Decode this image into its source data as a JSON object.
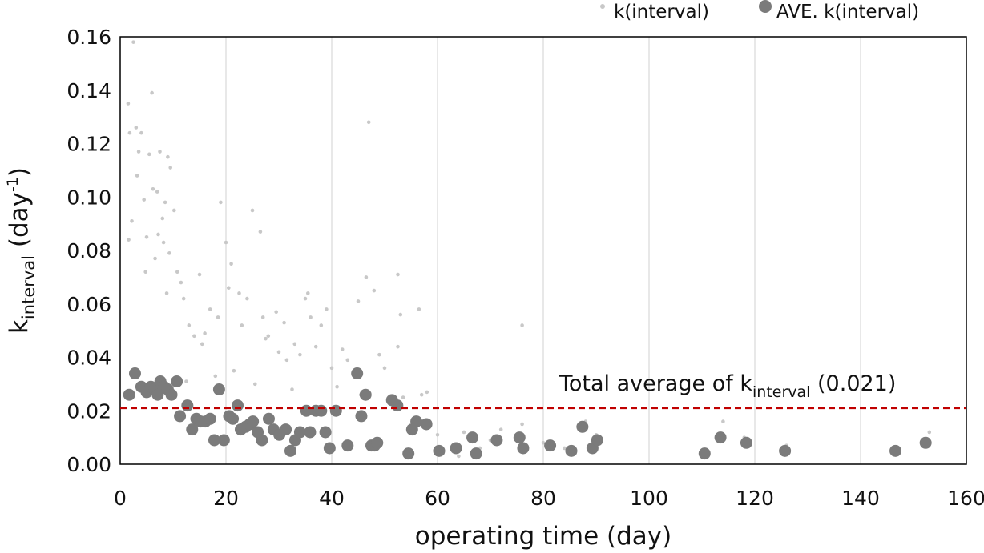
{
  "chart_data": {
    "type": "scatter",
    "title": "",
    "xlabel": "operating time (day)",
    "ylabel": {
      "base": "k",
      "subscript": "interval",
      "unit_open": " (day",
      "superscript": "-1",
      "unit_close": ")"
    },
    "xlim": [
      0,
      160
    ],
    "ylim": [
      0,
      0.16
    ],
    "xticks": [
      0,
      20,
      40,
      60,
      80,
      100,
      120,
      140,
      160
    ],
    "yticks": [
      0.0,
      0.02,
      0.04,
      0.06,
      0.08,
      0.1,
      0.12,
      0.14,
      0.16
    ],
    "ytick_labels": [
      "0.00",
      "0.02",
      "0.04",
      "0.06",
      "0.08",
      "0.10",
      "0.12",
      "0.14",
      "0.16"
    ],
    "xtick_labels": [
      "0",
      "20",
      "40",
      "60",
      "80",
      "100",
      "120",
      "140",
      "160"
    ],
    "grid": "vertical",
    "legend_position": "top-right",
    "series": [
      {
        "name": "k(interval)",
        "marker": "small-dot",
        "color": "#c8c8c8",
        "points": [
          [
            1.5,
            0.135
          ],
          [
            2.5,
            0.158
          ],
          [
            1.8,
            0.124
          ],
          [
            3.0,
            0.126
          ],
          [
            3.2,
            0.108
          ],
          [
            4.0,
            0.124
          ],
          [
            5.5,
            0.116
          ],
          [
            6.0,
            0.139
          ],
          [
            6.2,
            0.103
          ],
          [
            7.0,
            0.102
          ],
          [
            7.5,
            0.117
          ],
          [
            8.0,
            0.092
          ],
          [
            8.5,
            0.098
          ],
          [
            9.0,
            0.115
          ],
          [
            9.5,
            0.111
          ],
          [
            3.5,
            0.117
          ],
          [
            4.5,
            0.099
          ],
          [
            5.0,
            0.085
          ],
          [
            7.2,
            0.086
          ],
          [
            8.2,
            0.083
          ],
          [
            10.2,
            0.095
          ],
          [
            10.8,
            0.072
          ],
          [
            11.5,
            0.068
          ],
          [
            12.0,
            0.062
          ],
          [
            1.6,
            0.084
          ],
          [
            2.2,
            0.091
          ],
          [
            4.8,
            0.072
          ],
          [
            6.6,
            0.077
          ],
          [
            8.8,
            0.064
          ],
          [
            9.3,
            0.079
          ],
          [
            13.0,
            0.052
          ],
          [
            14.0,
            0.048
          ],
          [
            15.0,
            0.071
          ],
          [
            15.5,
            0.045
          ],
          [
            17.0,
            0.058
          ],
          [
            18.5,
            0.055
          ],
          [
            19.0,
            0.098
          ],
          [
            20.0,
            0.083
          ],
          [
            21.0,
            0.075
          ],
          [
            22.5,
            0.064
          ],
          [
            24.0,
            0.062
          ],
          [
            25.0,
            0.095
          ],
          [
            26.5,
            0.087
          ],
          [
            27.0,
            0.055
          ],
          [
            28.0,
            0.048
          ],
          [
            30.0,
            0.042
          ],
          [
            31.0,
            0.053
          ],
          [
            33.0,
            0.045
          ],
          [
            35.0,
            0.062
          ],
          [
            35.5,
            0.064
          ],
          [
            36.0,
            0.055
          ],
          [
            38.0,
            0.052
          ],
          [
            39.0,
            0.058
          ],
          [
            40.0,
            0.036
          ],
          [
            42.0,
            0.043
          ],
          [
            43.0,
            0.039
          ],
          [
            45.0,
            0.061
          ],
          [
            46.5,
            0.07
          ],
          [
            47.0,
            0.128
          ],
          [
            48.0,
            0.065
          ],
          [
            49.0,
            0.041
          ],
          [
            52.5,
            0.071
          ],
          [
            53.0,
            0.056
          ],
          [
            56.5,
            0.058
          ],
          [
            52.5,
            0.044
          ],
          [
            76.0,
            0.052
          ],
          [
            56.0,
            0.014
          ],
          [
            60.0,
            0.011
          ],
          [
            65.0,
            0.012
          ],
          [
            70.0,
            0.009
          ],
          [
            72.0,
            0.013
          ],
          [
            76.0,
            0.015
          ],
          [
            80.0,
            0.008
          ],
          [
            88.0,
            0.016
          ],
          [
            90.0,
            0.011
          ],
          [
            114.0,
            0.016
          ],
          [
            118.0,
            0.01
          ],
          [
            126.0,
            0.007
          ],
          [
            147.0,
            0.006
          ],
          [
            153.0,
            0.012
          ],
          [
            61.0,
            0.004
          ],
          [
            64.0,
            0.003
          ],
          [
            68.0,
            0.006
          ],
          [
            84.0,
            0.006
          ],
          [
            86.0,
            0.004
          ],
          [
            111.0,
            0.005
          ],
          [
            20.5,
            0.066
          ],
          [
            23.0,
            0.052
          ],
          [
            27.5,
            0.047
          ],
          [
            31.5,
            0.039
          ],
          [
            34.0,
            0.041
          ],
          [
            37.0,
            0.044
          ],
          [
            44.5,
            0.033
          ],
          [
            50.0,
            0.036
          ],
          [
            57.0,
            0.026
          ],
          [
            58.0,
            0.027
          ],
          [
            16.0,
            0.049
          ],
          [
            29.5,
            0.057
          ],
          [
            41.0,
            0.029
          ],
          [
            12.5,
            0.031
          ],
          [
            18.0,
            0.033
          ],
          [
            21.5,
            0.035
          ],
          [
            25.5,
            0.03
          ],
          [
            32.5,
            0.028
          ],
          [
            45.5,
            0.026
          ],
          [
            53.5,
            0.025
          ]
        ]
      },
      {
        "name": "AVE. k(interval)",
        "marker": "large-dot",
        "color": "#7b7b7b",
        "points": [
          [
            1.7,
            0.026
          ],
          [
            2.8,
            0.034
          ],
          [
            4.0,
            0.029
          ],
          [
            5.0,
            0.027
          ],
          [
            5.8,
            0.029
          ],
          [
            6.5,
            0.028
          ],
          [
            7.1,
            0.026
          ],
          [
            7.6,
            0.031
          ],
          [
            8.3,
            0.029
          ],
          [
            9.0,
            0.028
          ],
          [
            9.7,
            0.026
          ],
          [
            10.7,
            0.031
          ],
          [
            11.3,
            0.018
          ],
          [
            12.7,
            0.022
          ],
          [
            13.6,
            0.013
          ],
          [
            14.4,
            0.017
          ],
          [
            15.2,
            0.016
          ],
          [
            16.1,
            0.016
          ],
          [
            17.0,
            0.017
          ],
          [
            17.8,
            0.009
          ],
          [
            18.7,
            0.028
          ],
          [
            19.6,
            0.009
          ],
          [
            20.6,
            0.018
          ],
          [
            21.3,
            0.017
          ],
          [
            22.2,
            0.022
          ],
          [
            22.8,
            0.013
          ],
          [
            23.7,
            0.014
          ],
          [
            24.5,
            0.015
          ],
          [
            25.1,
            0.016
          ],
          [
            26.0,
            0.012
          ],
          [
            26.8,
            0.009
          ],
          [
            28.1,
            0.017
          ],
          [
            29.0,
            0.013
          ],
          [
            30.1,
            0.011
          ],
          [
            31.3,
            0.013
          ],
          [
            32.2,
            0.005
          ],
          [
            33.1,
            0.009
          ],
          [
            34.0,
            0.012
          ],
          [
            35.2,
            0.02
          ],
          [
            35.9,
            0.012
          ],
          [
            37.0,
            0.02
          ],
          [
            38.0,
            0.02
          ],
          [
            38.8,
            0.012
          ],
          [
            39.6,
            0.006
          ],
          [
            40.8,
            0.02
          ],
          [
            43.0,
            0.007
          ],
          [
            44.8,
            0.034
          ],
          [
            45.6,
            0.018
          ],
          [
            46.4,
            0.026
          ],
          [
            47.5,
            0.007
          ],
          [
            48.1,
            0.007
          ],
          [
            48.6,
            0.008
          ],
          [
            51.4,
            0.024
          ],
          [
            52.4,
            0.022
          ],
          [
            54.5,
            0.004
          ],
          [
            55.2,
            0.013
          ],
          [
            56.0,
            0.016
          ],
          [
            57.9,
            0.015
          ],
          [
            60.3,
            0.005
          ],
          [
            63.5,
            0.006
          ],
          [
            66.6,
            0.01
          ],
          [
            67.3,
            0.004
          ],
          [
            71.2,
            0.009
          ],
          [
            75.5,
            0.01
          ],
          [
            76.2,
            0.006
          ],
          [
            81.3,
            0.007
          ],
          [
            85.3,
            0.005
          ],
          [
            87.4,
            0.014
          ],
          [
            89.3,
            0.006
          ],
          [
            90.2,
            0.009
          ],
          [
            110.5,
            0.004
          ],
          [
            113.5,
            0.01
          ],
          [
            118.4,
            0.008
          ],
          [
            125.7,
            0.005
          ],
          [
            146.6,
            0.005
          ],
          [
            152.3,
            0.008
          ]
        ]
      }
    ],
    "reference_line": {
      "y": 0.021,
      "color": "#c00000",
      "style": "dashed",
      "label": {
        "prefix": "Total average of k",
        "subscript": "interval",
        "suffix": " (0.021)"
      }
    }
  },
  "legend": {
    "items": [
      "k(interval)",
      "AVE. k(interval)"
    ]
  }
}
